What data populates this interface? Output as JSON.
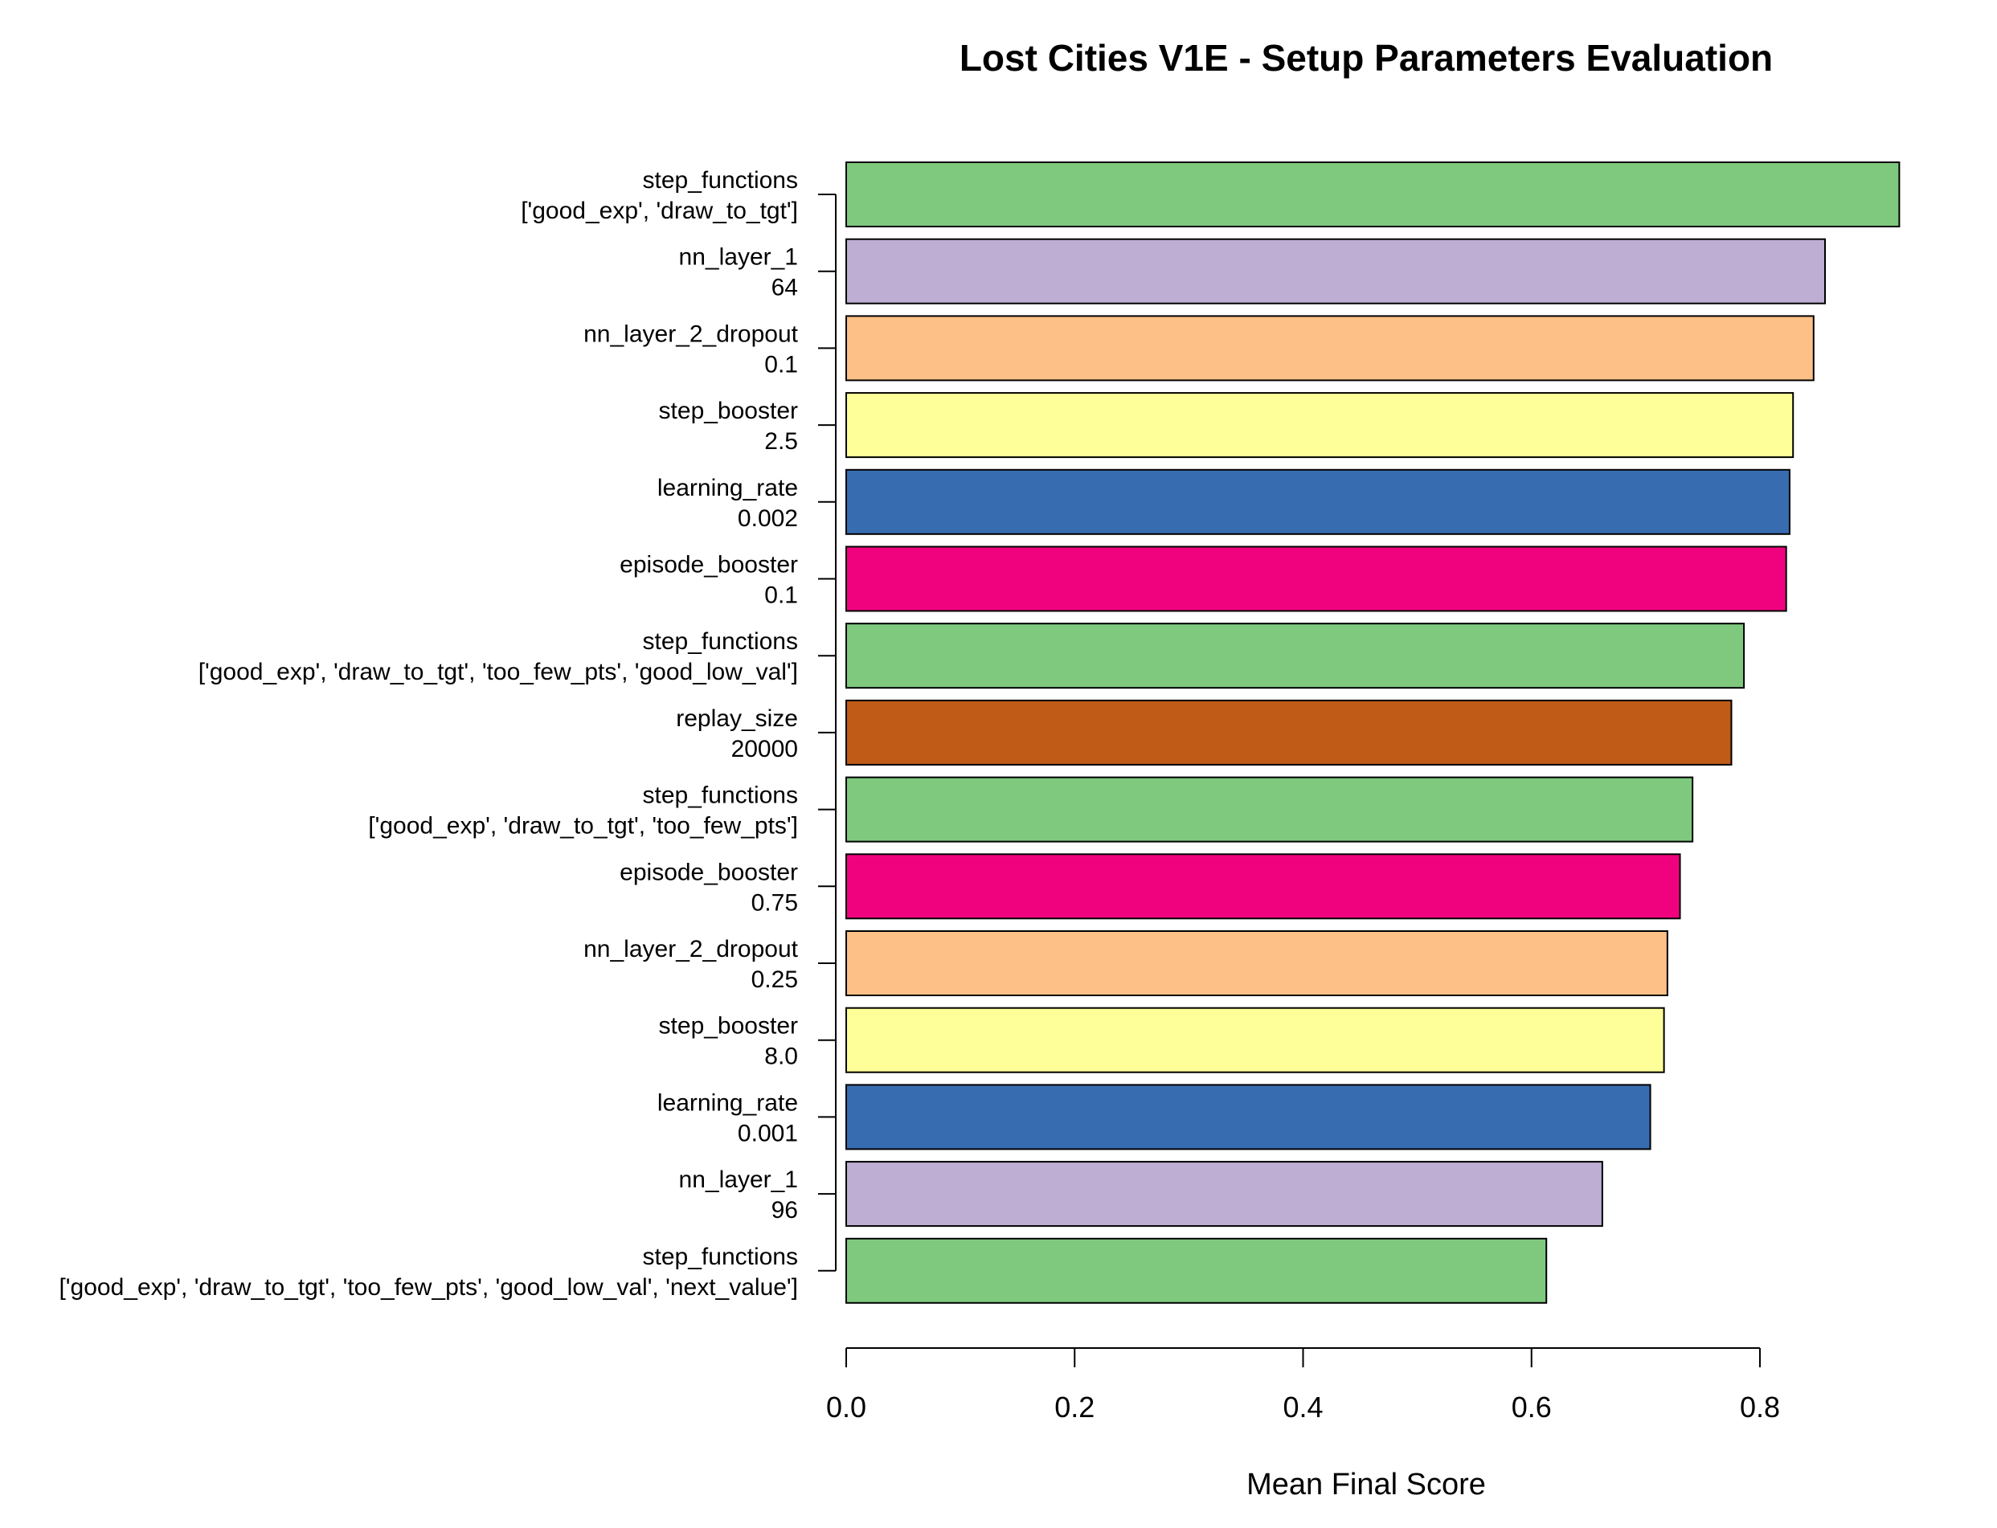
{
  "chart_data": {
    "type": "bar",
    "orientation": "horizontal",
    "title": "Lost Cities V1E - Setup Parameters Evaluation",
    "xlabel": "Mean Final Score",
    "ylabel": "",
    "xlim": [
      0,
      0.93
    ],
    "x_ticks": [
      "0.0",
      "0.2",
      "0.4",
      "0.6",
      "0.8"
    ],
    "grid": false,
    "legend": "none",
    "bars": [
      {
        "parameter": "step_functions",
        "setting": "['good_exp', 'draw_to_tgt']",
        "value": 0.922,
        "color": "#7fc97f"
      },
      {
        "parameter": "nn_layer_1",
        "setting": "64",
        "value": 0.857,
        "color": "#beaed4"
      },
      {
        "parameter": "nn_layer_2_dropout",
        "setting": "0.1",
        "value": 0.847,
        "color": "#fdc086"
      },
      {
        "parameter": "step_booster",
        "setting": "2.5",
        "value": 0.829,
        "color": "#ffff99"
      },
      {
        "parameter": "learning_rate",
        "setting": "0.002",
        "value": 0.826,
        "color": "#386cb0"
      },
      {
        "parameter": "episode_booster",
        "setting": "0.1",
        "value": 0.823,
        "color": "#f0027f"
      },
      {
        "parameter": "step_functions",
        "setting": "['good_exp', 'draw_to_tgt', 'too_few_pts', 'good_low_val']",
        "value": 0.786,
        "color": "#7fc97f"
      },
      {
        "parameter": "replay_size",
        "setting": "20000",
        "value": 0.775,
        "color": "#bf5b17"
      },
      {
        "parameter": "step_functions",
        "setting": "['good_exp', 'draw_to_tgt', 'too_few_pts']",
        "value": 0.741,
        "color": "#7fc97f"
      },
      {
        "parameter": "episode_booster",
        "setting": "0.75",
        "value": 0.73,
        "color": "#f0027f"
      },
      {
        "parameter": "nn_layer_2_dropout",
        "setting": "0.25",
        "value": 0.719,
        "color": "#fdc086"
      },
      {
        "parameter": "step_booster",
        "setting": "8.0",
        "value": 0.716,
        "color": "#ffff99"
      },
      {
        "parameter": "learning_rate",
        "setting": "0.001",
        "value": 0.704,
        "color": "#386cb0"
      },
      {
        "parameter": "nn_layer_1",
        "setting": "96",
        "value": 0.662,
        "color": "#beaed4"
      },
      {
        "parameter": "step_functions",
        "setting": "['good_exp', 'draw_to_tgt', 'too_few_pts', 'good_low_val', 'next_value']",
        "value": 0.613,
        "color": "#7fc97f"
      }
    ]
  }
}
